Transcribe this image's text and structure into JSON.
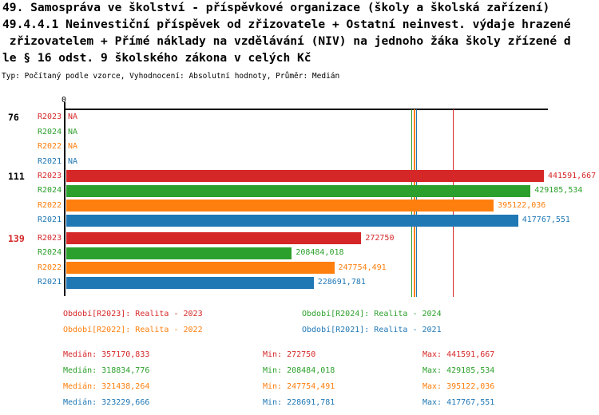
{
  "header": {
    "title_lines": [
      "49. Samospráva ve školství - příspěvkové organizace (školy a školská zařízení)",
      "49.4.4.1 Neinvestiční příspěvek od zřizovatele + Ostatní neinvest. výdaje hrazené",
      " zřizovatelem + Přímé náklady na vzdělávání (NIV) na jednoho žáka školy zřízené d",
      "le § 16 odst. 9 školského zákona v celých Kč"
    ],
    "subtitle": "Typ: Počítaný podle vzorce, Vyhodnocení: Absolutní hodnoty, Průměr: Medián"
  },
  "chart_data": {
    "type": "bar",
    "orientation": "horizontal",
    "value_axis": {
      "zero_label": "0",
      "max_value": 446000
    },
    "series_colors": {
      "R2023": "#d62728",
      "R2024": "#2ca02c",
      "R2022": "#ff7f0e",
      "R2021": "#1f77b4"
    },
    "groups": [
      {
        "label": "76",
        "label_color": "#000000",
        "rows": [
          {
            "series": "R2023",
            "value": null,
            "display": "NA"
          },
          {
            "series": "R2024",
            "value": null,
            "display": "NA"
          },
          {
            "series": "R2022",
            "value": null,
            "display": "NA"
          },
          {
            "series": "R2021",
            "value": null,
            "display": "NA"
          }
        ]
      },
      {
        "label": "111",
        "label_color": "#000000",
        "rows": [
          {
            "series": "R2023",
            "value": 441591.667,
            "display": "441591,667"
          },
          {
            "series": "R2024",
            "value": 429185.534,
            "display": "429185,534"
          },
          {
            "series": "R2022",
            "value": 395122.036,
            "display": "395122,036"
          },
          {
            "series": "R2021",
            "value": 417767.551,
            "display": "417767,551"
          }
        ]
      },
      {
        "label": "139",
        "label_color": "#d62728",
        "rows": [
          {
            "series": "R2023",
            "value": 272750,
            "display": "272750"
          },
          {
            "series": "R2024",
            "value": 208484.018,
            "display": "208484,018"
          },
          {
            "series": "R2022",
            "value": 247754.491,
            "display": "247754,491"
          },
          {
            "series": "R2021",
            "value": 228691.781,
            "display": "228691,781"
          }
        ]
      }
    ],
    "median_lines": [
      {
        "series": "R2023",
        "value": 357170.833
      },
      {
        "series": "R2024",
        "value": 318834.776
      },
      {
        "series": "R2022",
        "value": 321438.264
      },
      {
        "series": "R2021",
        "value": 323229.666
      }
    ]
  },
  "legend": {
    "items": [
      {
        "id": "R2023",
        "label": "Období[R2023]: Realita - 2023",
        "color": "#d62728"
      },
      {
        "id": "R2024",
        "label": "Období[R2024]: Realita - 2024",
        "color": "#2ca02c"
      },
      {
        "id": "R2022",
        "label": "Období[R2022]: Realita - 2022",
        "color": "#ff7f0e"
      },
      {
        "id": "R2021",
        "label": "Období[R2021]: Realita - 2021",
        "color": "#1f77b4"
      }
    ]
  },
  "stats": {
    "rows": [
      {
        "color": "#d62728",
        "median": "Medián: 357170,833",
        "min": "Min: 272750",
        "max": "Max: 441591,667"
      },
      {
        "color": "#2ca02c",
        "median": "Medián: 318834,776",
        "min": "Min: 208484,018",
        "max": "Max: 429185,534"
      },
      {
        "color": "#ff7f0e",
        "median": "Medián: 321438,264",
        "min": "Min: 247754,491",
        "max": "Max: 395122,036"
      },
      {
        "color": "#1f77b4",
        "median": "Medián: 323229,666",
        "min": "Min: 228691,781",
        "max": "Max: 417767,551"
      }
    ]
  }
}
